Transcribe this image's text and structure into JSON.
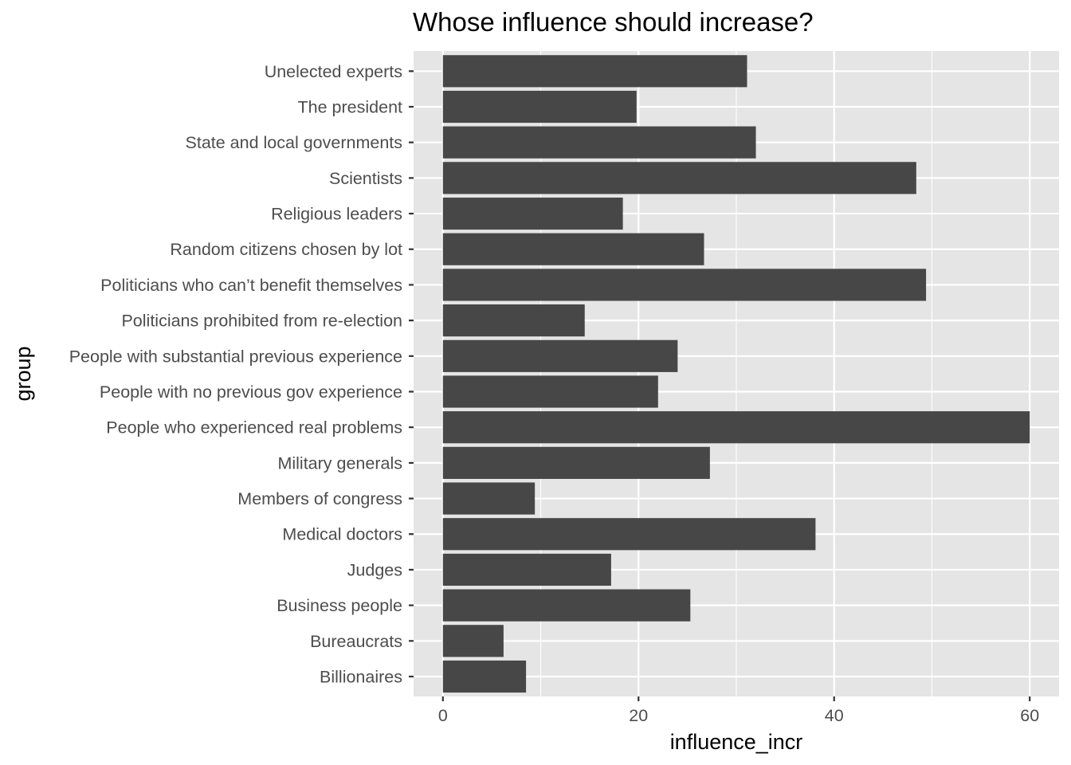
{
  "chart_data": {
    "type": "bar",
    "orientation": "horizontal",
    "title": "Whose influence should increase?",
    "xlabel": "influence_incr",
    "ylabel": "group",
    "xlim": [
      0,
      60
    ],
    "xticks": [
      0,
      20,
      40,
      60
    ],
    "grid": true,
    "categories": [
      "Billionaires",
      "Bureaucrats",
      "Business people",
      "Judges",
      "Medical doctors",
      "Members of congress",
      "Military generals",
      "People who experienced real problems",
      "People with no previous gov experience",
      "People with substantial previous experience",
      "Politicians prohibited from re-election",
      "Politicians who can’t benefit themselves",
      "Random citizens chosen by lot",
      "Religious leaders",
      "Scientists",
      "State and local governments",
      "The president",
      "Unelected experts"
    ],
    "values": [
      8.5,
      6.2,
      25.3,
      17.2,
      38.1,
      9.4,
      27.3,
      60.0,
      22.0,
      24.0,
      14.5,
      49.4,
      26.7,
      18.4,
      48.4,
      32.0,
      19.8,
      31.1
    ],
    "colors": {
      "bar": "#474747",
      "panel": "#e5e5e5",
      "grid": "#ffffff"
    }
  }
}
